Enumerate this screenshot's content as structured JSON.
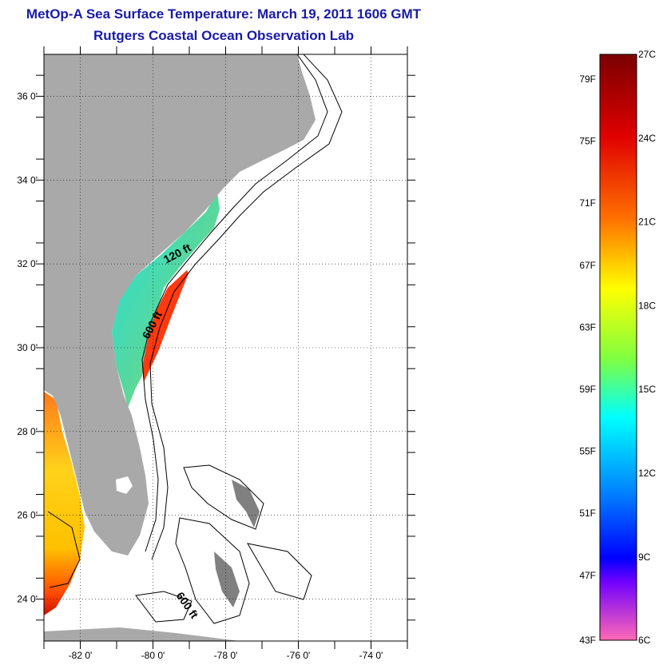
{
  "header": {
    "title": "MetOp-A Sea Surface Temperature:  March 19, 2011 1606 GMT",
    "subtitle": "Rutgers Coastal Ocean Observation Lab"
  },
  "map": {
    "lon_range": [
      -83.0,
      -73.0
    ],
    "lat_range": [
      23.0,
      37.0
    ],
    "lat_ticks": [
      "24 0'",
      "26 0'",
      "28 0'",
      "30 0'",
      "32 0'",
      "34 0'",
      "36 0'"
    ],
    "lon_ticks": [
      "-82 0'",
      "-80 0'",
      "-78 0'",
      "-76 0'",
      "-74 0'"
    ],
    "grid": true,
    "land_color": "#a9a9a9",
    "contour_labels": {
      "shelf_120": "120 ft",
      "slope_600_north": "600 ft",
      "slope_600_south": "600 ft"
    }
  },
  "colorbar": {
    "fahrenheit": [
      "79F",
      "75F",
      "71F",
      "67F",
      "63F",
      "59F",
      "55F",
      "51F",
      "47F",
      "43F"
    ],
    "celsius": [
      "27C",
      "24C",
      "21C",
      "18C",
      "15C",
      "12C",
      "9C",
      "6C"
    ],
    "colors": [
      "#7a0000",
      "#ff0000",
      "#ff7f00",
      "#ffff00",
      "#00ffff",
      "#0000ff",
      "#9400d3",
      "#ff69b4"
    ]
  }
}
